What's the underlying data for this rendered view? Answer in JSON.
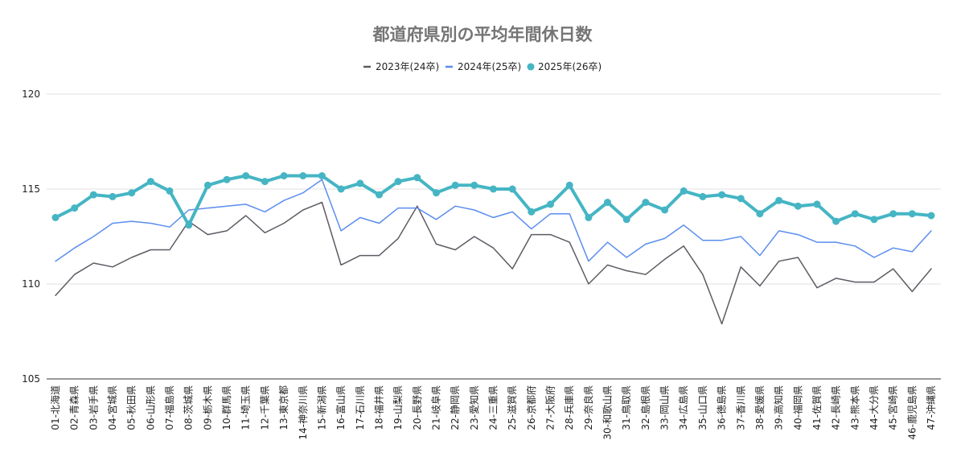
{
  "chart_data": {
    "type": "line",
    "title": "都道府県別の平均年間休日数",
    "legend_position": "top",
    "ylim": [
      105,
      120
    ],
    "yticks": [
      105,
      110,
      115,
      120
    ],
    "grid": true,
    "categories": [
      "01-北海道",
      "02-青森県",
      "03-岩手県",
      "04-宮城県",
      "05-秋田県",
      "06-山形県",
      "07-福島県",
      "08-茨城県",
      "09-栃木県",
      "10-群馬県",
      "11-埼玉県",
      "12-千葉県",
      "13-東京都",
      "14-神奈川県",
      "15-新潟県",
      "16-富山県",
      "17-石川県",
      "18-福井県",
      "19-山梨県",
      "20-長野県",
      "21-岐阜県",
      "22-静岡県",
      "23-愛知県",
      "24-三重県",
      "25-滋賀県",
      "26-京都府",
      "27-大阪府",
      "28-兵庫県",
      "29-奈良県",
      "30-和歌山県",
      "31-鳥取県",
      "32-島根県",
      "33-岡山県",
      "34-広島県",
      "35-山口県",
      "36-徳島県",
      "37-香川県",
      "38-愛媛県",
      "39-高知県",
      "40-福岡県",
      "41-佐賀県",
      "42-長崎県",
      "43-熊本県",
      "44-大分県",
      "45-宮崎県",
      "46-鹿児島県",
      "47-沖縄県"
    ],
    "series": [
      {
        "name": "2023年(24卒)",
        "color": "#5f5a64",
        "marker": false,
        "values": [
          109.4,
          110.5,
          111.1,
          110.9,
          111.4,
          111.8,
          111.8,
          113.3,
          112.6,
          112.8,
          113.6,
          112.7,
          113.2,
          113.9,
          114.3,
          111.0,
          111.5,
          111.5,
          112.4,
          114.1,
          112.1,
          111.8,
          112.5,
          111.9,
          110.8,
          112.6,
          112.6,
          112.2,
          110.0,
          111.0,
          110.7,
          110.5,
          111.3,
          112.0,
          110.5,
          107.9,
          110.9,
          109.9,
          111.2,
          111.4,
          109.8,
          110.3,
          110.1,
          110.1,
          110.8,
          109.6,
          110.8
        ]
      },
      {
        "name": "2024年(25卒)",
        "color": "#5b8def",
        "marker": false,
        "values": [
          111.2,
          111.9,
          112.5,
          113.2,
          113.3,
          113.2,
          113.0,
          113.9,
          114.0,
          114.1,
          114.2,
          113.8,
          114.4,
          114.8,
          115.5,
          112.8,
          113.5,
          113.2,
          114.0,
          114.0,
          113.4,
          114.1,
          113.9,
          113.5,
          113.8,
          112.9,
          113.7,
          113.7,
          111.2,
          112.2,
          111.4,
          112.1,
          112.4,
          113.1,
          112.3,
          112.3,
          112.5,
          111.5,
          112.8,
          112.6,
          112.2,
          112.2,
          112.0,
          111.4,
          111.9,
          111.7,
          112.8
        ]
      },
      {
        "name": "2025年(26卒)",
        "color": "#45b5c4",
        "marker": true,
        "values": [
          113.5,
          114.0,
          114.7,
          114.6,
          114.8,
          115.4,
          114.9,
          113.1,
          115.2,
          115.5,
          115.7,
          115.4,
          115.7,
          115.7,
          115.7,
          115.0,
          115.3,
          114.7,
          115.4,
          115.6,
          114.8,
          115.2,
          115.2,
          115.0,
          115.0,
          113.8,
          114.2,
          115.2,
          113.5,
          114.3,
          113.4,
          114.3,
          113.9,
          114.9,
          114.6,
          114.7,
          114.5,
          113.7,
          114.4,
          114.1,
          114.2,
          113.3,
          113.7,
          113.4,
          113.7,
          113.7,
          113.6
        ]
      }
    ]
  }
}
